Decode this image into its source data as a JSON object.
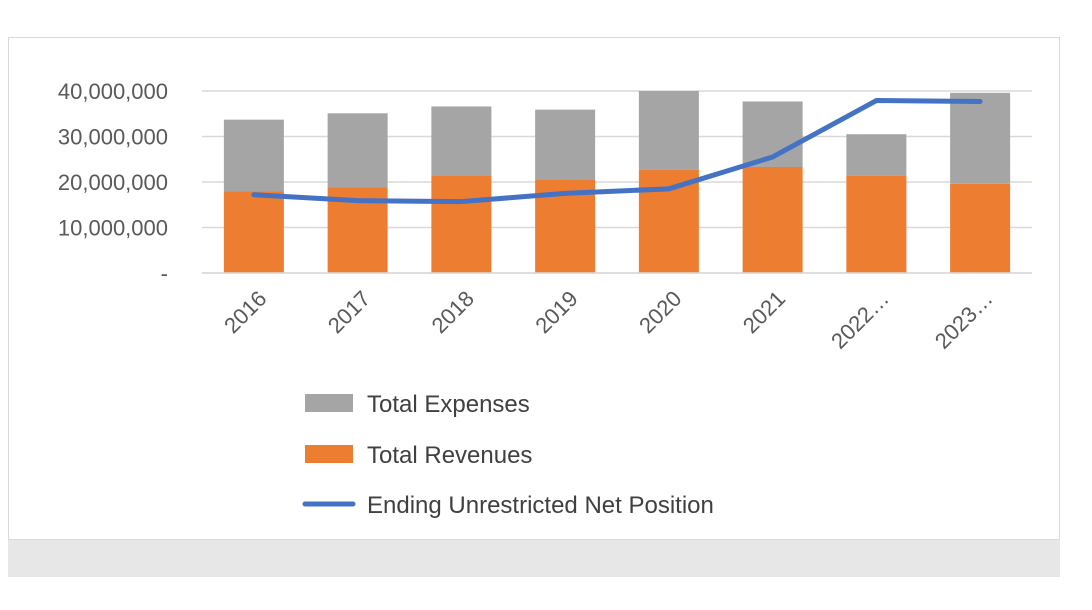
{
  "chart_data": {
    "type": "bar",
    "stacked": true,
    "categories": [
      "2016",
      "2017",
      "2018",
      "2019",
      "2020",
      "2021",
      "2022…",
      "2023…"
    ],
    "series": [
      {
        "name": "Total Revenues",
        "kind": "bar",
        "color": "#ed7d31",
        "values": [
          18000000,
          18800000,
          21500000,
          20600000,
          22800000,
          23300000,
          21400000,
          19600000
        ]
      },
      {
        "name": "Total Expenses",
        "kind": "bar",
        "color": "#a5a5a5",
        "values": [
          15700000,
          16300000,
          15100000,
          15300000,
          17200000,
          14400000,
          9100000,
          20000000
        ]
      },
      {
        "name": "Ending Unrestricted Net Position",
        "kind": "line",
        "color": "#4472c4",
        "values": [
          17200000,
          15900000,
          15700000,
          17500000,
          18500000,
          25500000,
          37900000,
          37700000
        ]
      }
    ],
    "yticks": [
      0,
      10000000,
      20000000,
      30000000,
      40000000
    ],
    "ytick_labels": [
      "-",
      "10,000,000",
      "20,000,000",
      "30,000,000",
      "40,000,000"
    ],
    "ylim": [
      0,
      40000000
    ],
    "legend": {
      "position": "bottom",
      "items": [
        "Total Expenses",
        "Total Revenues",
        "Ending Unrestricted Net Position"
      ]
    },
    "title": "",
    "xlabel": "",
    "ylabel": "",
    "grid": true
  }
}
